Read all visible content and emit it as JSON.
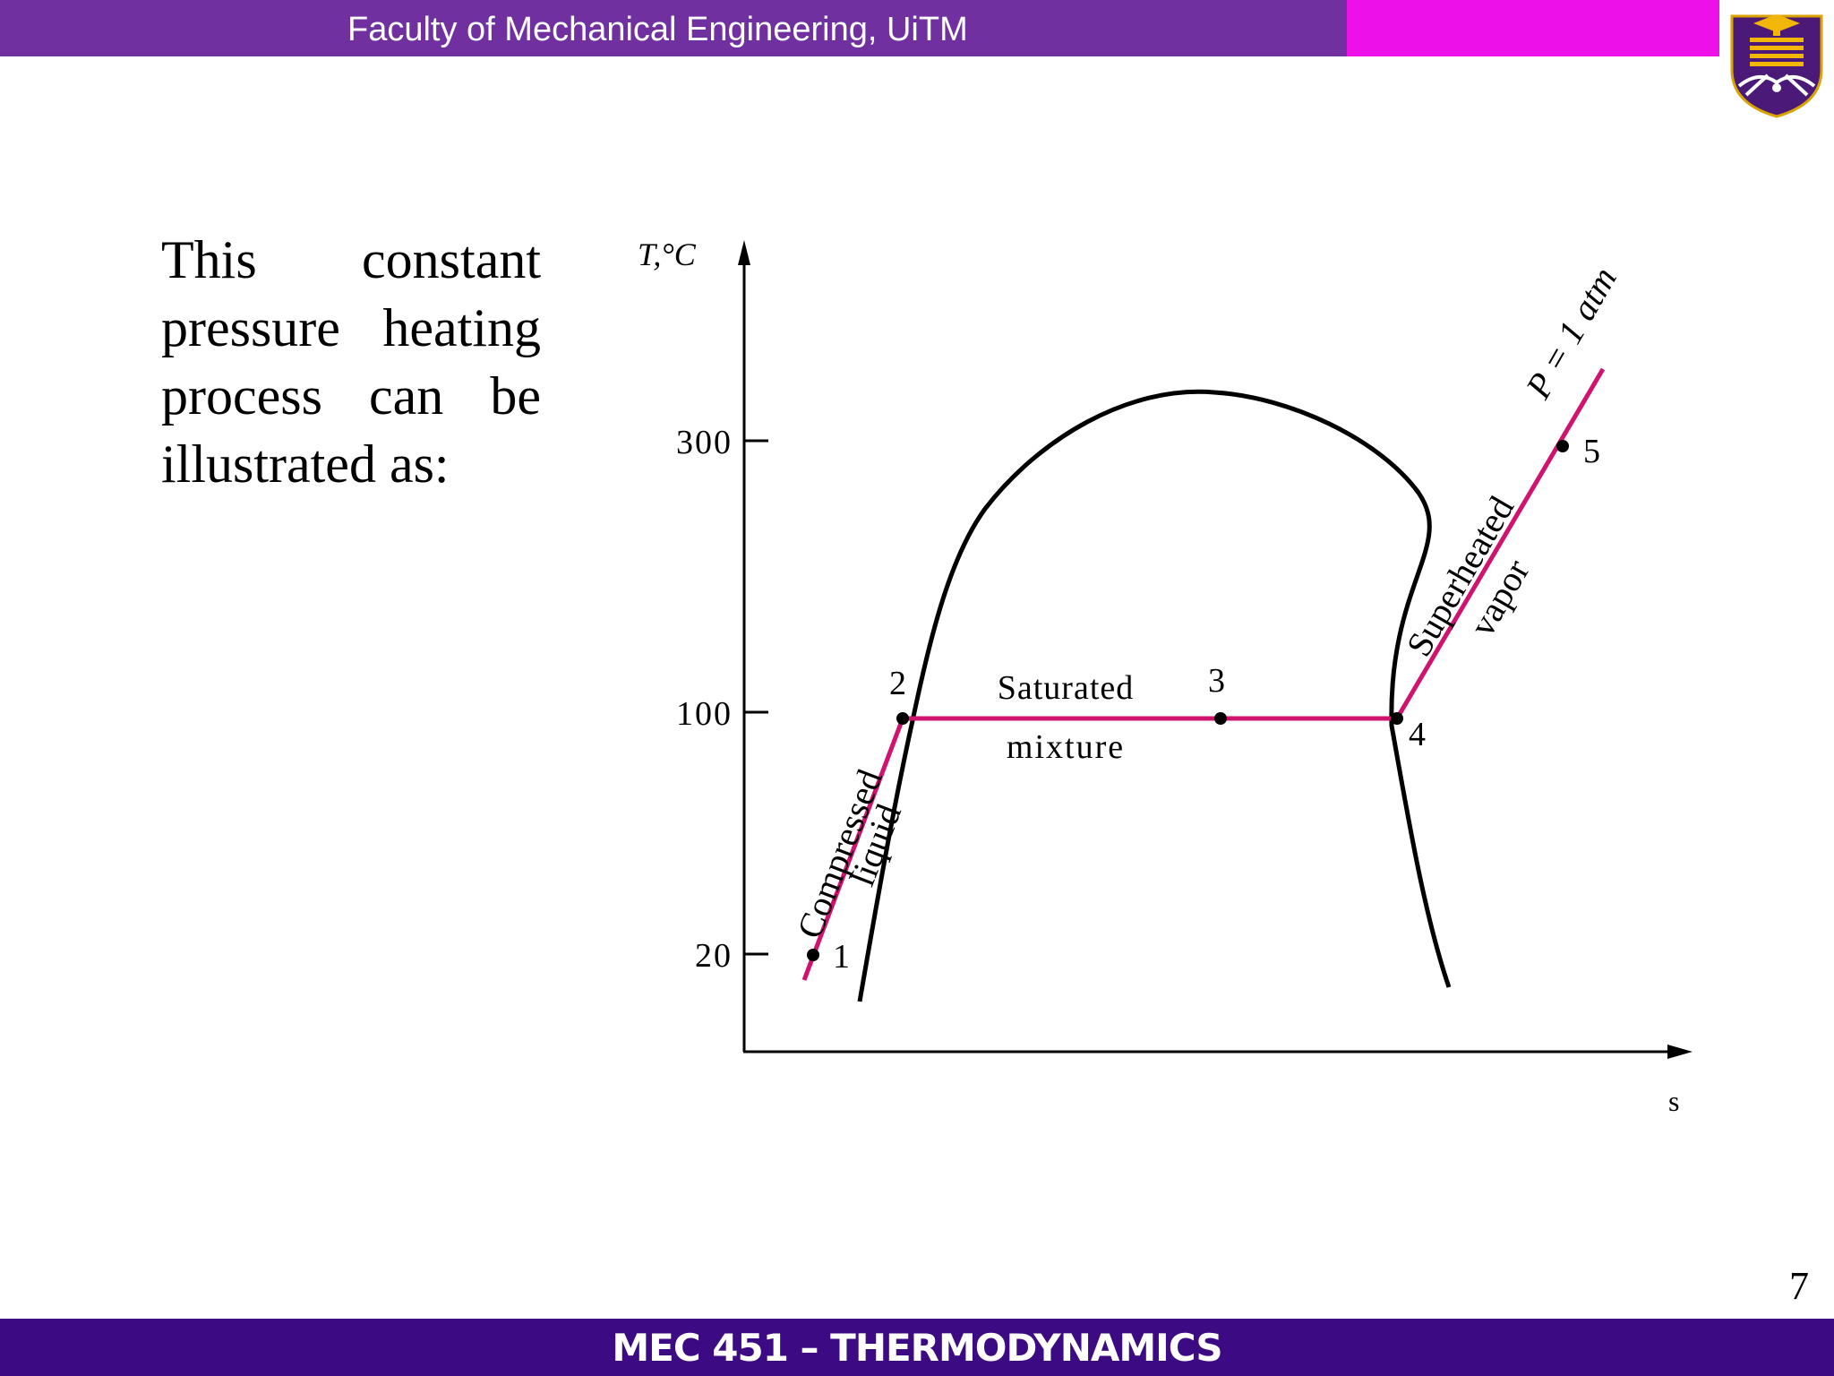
{
  "header": {
    "title": "Faculty of Mechanical Engineering, UiTM"
  },
  "content": {
    "text": "This constant pressure heating process can be illustrated as:"
  },
  "diagram": {
    "y_axis_label": "T,°C",
    "x_axis_label": "s",
    "y_ticks": [
      "300",
      "100",
      "20"
    ],
    "states": [
      "1",
      "2",
      "3",
      "4",
      "5"
    ],
    "region_labels": {
      "compressed_1": "Compressed",
      "compressed_2": "liquid",
      "saturated_1": "Saturated",
      "saturated_2": "mixture",
      "superheated_1": "Superheated",
      "superheated_2": "vapor",
      "pressure": "P = 1 atm"
    },
    "colors": {
      "process_line": "#d0136e",
      "dome": "#000000"
    }
  },
  "footer": {
    "title": "MEC 451 – THERMODYNAMICS"
  },
  "page_number": "7",
  "colors": {
    "header": "#7030a0",
    "header_accent": "#ee10e8",
    "footer": "#3c0a82"
  }
}
